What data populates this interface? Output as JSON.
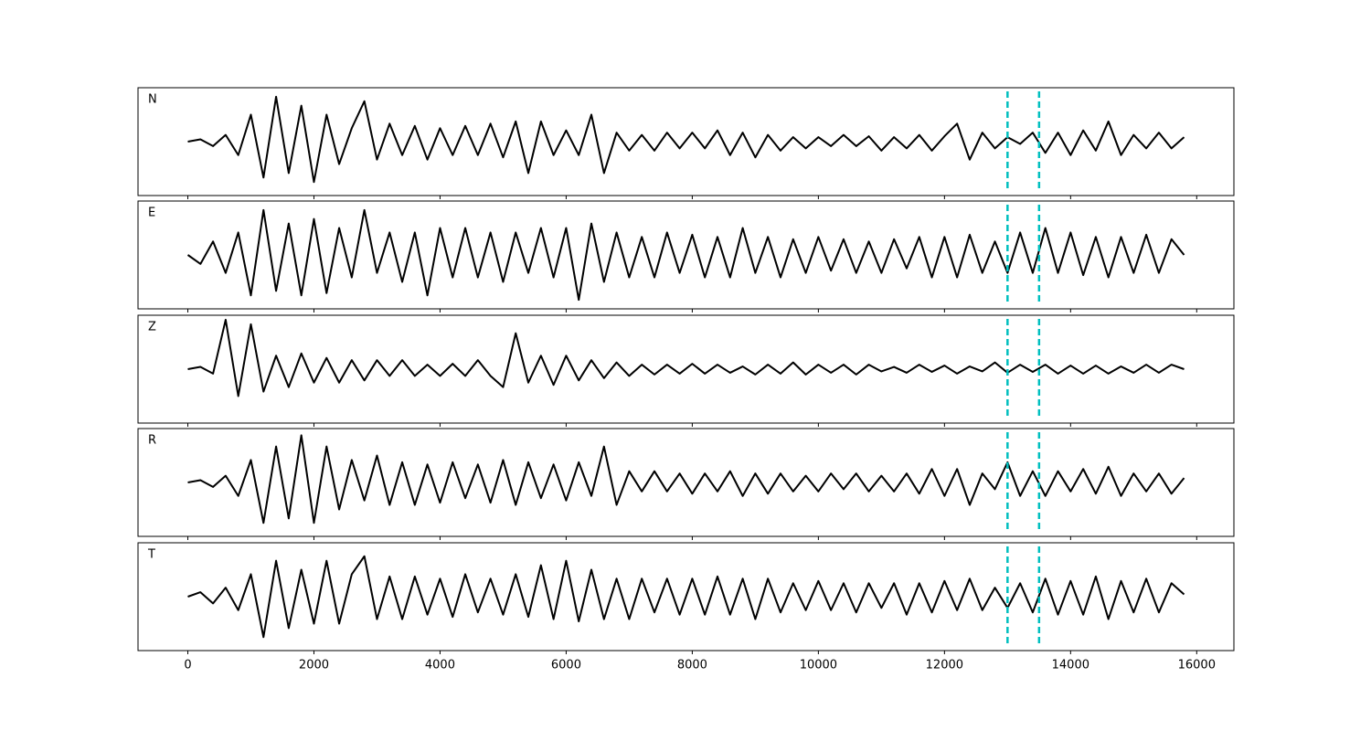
{
  "chart_data": {
    "type": "line",
    "x": [
      0,
      200,
      400,
      600,
      800,
      1000,
      1200,
      1400,
      1600,
      1800,
      2000,
      2200,
      2400,
      2600,
      2800,
      3000,
      3200,
      3400,
      3600,
      3800,
      4000,
      4200,
      4400,
      4600,
      4800,
      5000,
      5200,
      5400,
      5600,
      5800,
      6000,
      6200,
      6400,
      6600,
      6800,
      7000,
      7200,
      7400,
      7600,
      7800,
      8000,
      8200,
      8400,
      8600,
      8800,
      9000,
      9200,
      9400,
      9600,
      9800,
      10000,
      10200,
      10400,
      10600,
      10800,
      11000,
      11200,
      11400,
      11600,
      11800,
      12000,
      12200,
      12400,
      12600,
      12800,
      13000,
      13200,
      13400,
      13600,
      13800,
      14000,
      14200,
      14400,
      14600,
      14800,
      15000,
      15200,
      15400,
      15600,
      15800
    ],
    "series": [
      {
        "name": "N",
        "color": "#000000",
        "values": [
          0,
          0.05,
          -0.1,
          0.15,
          -0.3,
          0.6,
          -0.8,
          1.0,
          -0.7,
          0.8,
          -0.9,
          0.6,
          -0.5,
          0.3,
          0.9,
          -0.4,
          0.4,
          -0.3,
          0.35,
          -0.4,
          0.3,
          -0.3,
          0.35,
          -0.3,
          0.4,
          -0.35,
          0.45,
          -0.7,
          0.45,
          -0.3,
          0.25,
          -0.3,
          0.6,
          -0.7,
          0.2,
          -0.2,
          0.15,
          -0.2,
          0.2,
          -0.15,
          0.2,
          -0.15,
          0.25,
          -0.3,
          0.2,
          -0.35,
          0.15,
          -0.2,
          0.1,
          -0.15,
          0.1,
          -0.1,
          0.15,
          -0.1,
          0.12,
          -0.2,
          0.1,
          -0.15,
          0.15,
          -0.2,
          0.12,
          0.4,
          -0.4,
          0.2,
          -0.15,
          0.1,
          -0.05,
          0.2,
          -0.25,
          0.2,
          -0.3,
          0.25,
          -0.2,
          0.45,
          -0.3,
          0.15,
          -0.15,
          0.2,
          -0.15,
          0.1
        ]
      },
      {
        "name": "E",
        "color": "#000000",
        "values": [
          0,
          -0.2,
          0.3,
          -0.4,
          0.5,
          -0.9,
          1.0,
          -0.8,
          0.7,
          -0.9,
          0.8,
          -0.85,
          0.6,
          -0.5,
          1.0,
          -0.4,
          0.5,
          -0.6,
          0.5,
          -0.9,
          0.6,
          -0.5,
          0.6,
          -0.5,
          0.5,
          -0.6,
          0.5,
          -0.4,
          0.6,
          -0.5,
          0.6,
          -1.0,
          0.7,
          -0.6,
          0.5,
          -0.5,
          0.4,
          -0.5,
          0.5,
          -0.4,
          0.45,
          -0.5,
          0.4,
          -0.5,
          0.6,
          -0.4,
          0.4,
          -0.5,
          0.35,
          -0.4,
          0.4,
          -0.35,
          0.35,
          -0.4,
          0.3,
          -0.4,
          0.35,
          -0.3,
          0.4,
          -0.5,
          0.4,
          -0.5,
          0.45,
          -0.4,
          0.3,
          -0.4,
          0.5,
          -0.4,
          0.6,
          -0.4,
          0.5,
          -0.45,
          0.4,
          -0.5,
          0.4,
          -0.4,
          0.45,
          -0.4,
          0.35,
          0
        ]
      },
      {
        "name": "Z",
        "color": "#000000",
        "values": [
          0,
          0.05,
          -0.1,
          1.1,
          -0.6,
          1.0,
          -0.5,
          0.3,
          -0.4,
          0.35,
          -0.3,
          0.25,
          -0.3,
          0.2,
          -0.25,
          0.2,
          -0.15,
          0.2,
          -0.15,
          0.1,
          -0.15,
          0.12,
          -0.15,
          0.2,
          -0.15,
          -0.4,
          0.8,
          -0.3,
          0.3,
          -0.35,
          0.3,
          -0.25,
          0.2,
          -0.2,
          0.15,
          -0.15,
          0.1,
          -0.12,
          0.1,
          -0.1,
          0.12,
          -0.1,
          0.1,
          -0.08,
          0.06,
          -0.12,
          0.1,
          -0.1,
          0.15,
          -0.12,
          0.1,
          -0.08,
          0.1,
          -0.12,
          0.1,
          -0.05,
          0.05,
          -0.08,
          0.1,
          -0.06,
          0.08,
          -0.1,
          0.06,
          -0.05,
          0.15,
          -0.08,
          0.1,
          -0.06,
          0.1,
          -0.1,
          0.08,
          -0.1,
          0.08,
          -0.1,
          0.06,
          -0.08,
          0.1,
          -0.08,
          0.1,
          0
        ]
      },
      {
        "name": "R",
        "color": "#000000",
        "values": [
          0,
          0.05,
          -0.1,
          0.15,
          -0.3,
          0.5,
          -0.9,
          0.8,
          -0.8,
          1.05,
          -0.9,
          0.8,
          -0.6,
          0.5,
          -0.4,
          0.6,
          -0.5,
          0.45,
          -0.5,
          0.4,
          -0.45,
          0.45,
          -0.35,
          0.4,
          -0.45,
          0.5,
          -0.5,
          0.45,
          -0.35,
          0.4,
          -0.4,
          0.45,
          -0.3,
          0.8,
          -0.5,
          0.25,
          -0.2,
          0.25,
          -0.2,
          0.2,
          -0.25,
          0.2,
          -0.2,
          0.25,
          -0.3,
          0.2,
          -0.25,
          0.2,
          -0.2,
          0.15,
          -0.2,
          0.2,
          -0.15,
          0.2,
          -0.2,
          0.15,
          -0.2,
          0.2,
          -0.25,
          0.3,
          -0.3,
          0.3,
          -0.5,
          0.2,
          -0.15,
          0.45,
          -0.3,
          0.25,
          -0.3,
          0.25,
          -0.2,
          0.3,
          -0.25,
          0.35,
          -0.3,
          0.2,
          -0.2,
          0.2,
          -0.25,
          0.1
        ]
      },
      {
        "name": "T",
        "color": "#000000",
        "values": [
          0,
          0.1,
          -0.15,
          0.2,
          -0.3,
          0.5,
          -0.9,
          0.8,
          -0.7,
          0.6,
          -0.6,
          0.8,
          -0.6,
          0.5,
          0.9,
          -0.5,
          0.45,
          -0.5,
          0.45,
          -0.4,
          0.4,
          -0.45,
          0.5,
          -0.35,
          0.4,
          -0.4,
          0.5,
          -0.45,
          0.7,
          -0.5,
          0.8,
          -0.55,
          0.6,
          -0.5,
          0.4,
          -0.5,
          0.4,
          -0.35,
          0.4,
          -0.4,
          0.4,
          -0.4,
          0.45,
          -0.4,
          0.4,
          -0.5,
          0.4,
          -0.35,
          0.3,
          -0.3,
          0.35,
          -0.3,
          0.3,
          -0.35,
          0.3,
          -0.25,
          0.3,
          -0.4,
          0.3,
          -0.35,
          0.35,
          -0.3,
          0.4,
          -0.3,
          0.2,
          -0.25,
          0.3,
          -0.35,
          0.4,
          -0.4,
          0.35,
          -0.4,
          0.45,
          -0.5,
          0.35,
          -0.35,
          0.4,
          -0.35,
          0.3,
          0.05
        ]
      }
    ],
    "xlim": [
      -790,
      16590
    ],
    "xticks": [
      0,
      2000,
      4000,
      6000,
      8000,
      10000,
      12000,
      14000,
      16000
    ],
    "ylim": [
      -1.2,
      1.2
    ],
    "vlines": [
      13000,
      13500
    ],
    "vline_color": "#00bfbf"
  }
}
